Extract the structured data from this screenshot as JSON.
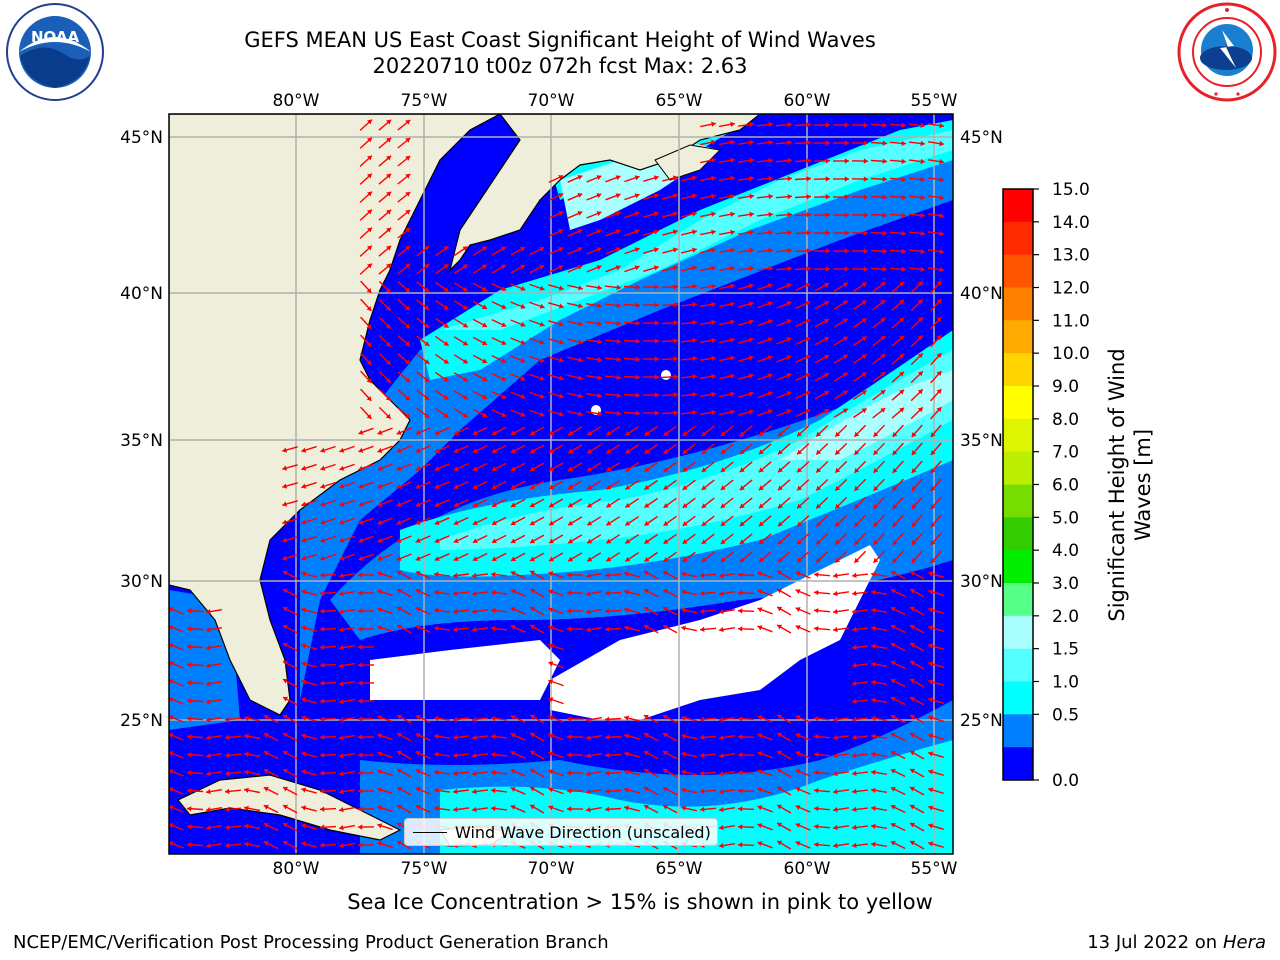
{
  "title": {
    "line1": "GEFS MEAN US East Coast Significant Height of Wind Waves",
    "line2": "20220710 t00z 072h fcst   Max: 2.63"
  },
  "logos": {
    "left": {
      "icon": "noaa-logo",
      "text": "NOAA"
    },
    "right": {
      "icon": "nws-logo"
    }
  },
  "map": {
    "lon_labels": [
      "80°W",
      "75°W",
      "70°W",
      "65°W",
      "60°W",
      "55°W"
    ],
    "lat_labels": [
      "45°N",
      "40°N",
      "35°N",
      "30°N",
      "25°N"
    ],
    "legend_label": "Wind Wave Direction (unscaled)"
  },
  "colorbar": {
    "label": "Significant Height of Wind Waves [m]",
    "ticks": [
      "15.0",
      "14.0",
      "13.0",
      "12.0",
      "11.0",
      "10.0",
      "9.0",
      "8.0",
      "7.0",
      "6.0",
      "5.0",
      "4.0",
      "3.0",
      "2.0",
      "1.5",
      "1.0",
      "0.5",
      "0.0"
    ],
    "colors": [
      "#ff0000",
      "#ff2a00",
      "#ff5500",
      "#ff8000",
      "#ffaa00",
      "#ffd400",
      "#ffff00",
      "#ddf500",
      "#bbee00",
      "#77dd00",
      "#33cc00",
      "#00ee00",
      "#55ff88",
      "#aaffff",
      "#55ffff",
      "#00ffff",
      "#0080ff",
      "#0000ff"
    ]
  },
  "subnote": "Sea Ice Concentration > 15% is shown in pink to yellow",
  "footer": {
    "left": "NCEP/EMC/Verification Post Processing Product Generation Branch",
    "right_date": "13 Jul 2022 on ",
    "right_host": "Hera"
  }
}
